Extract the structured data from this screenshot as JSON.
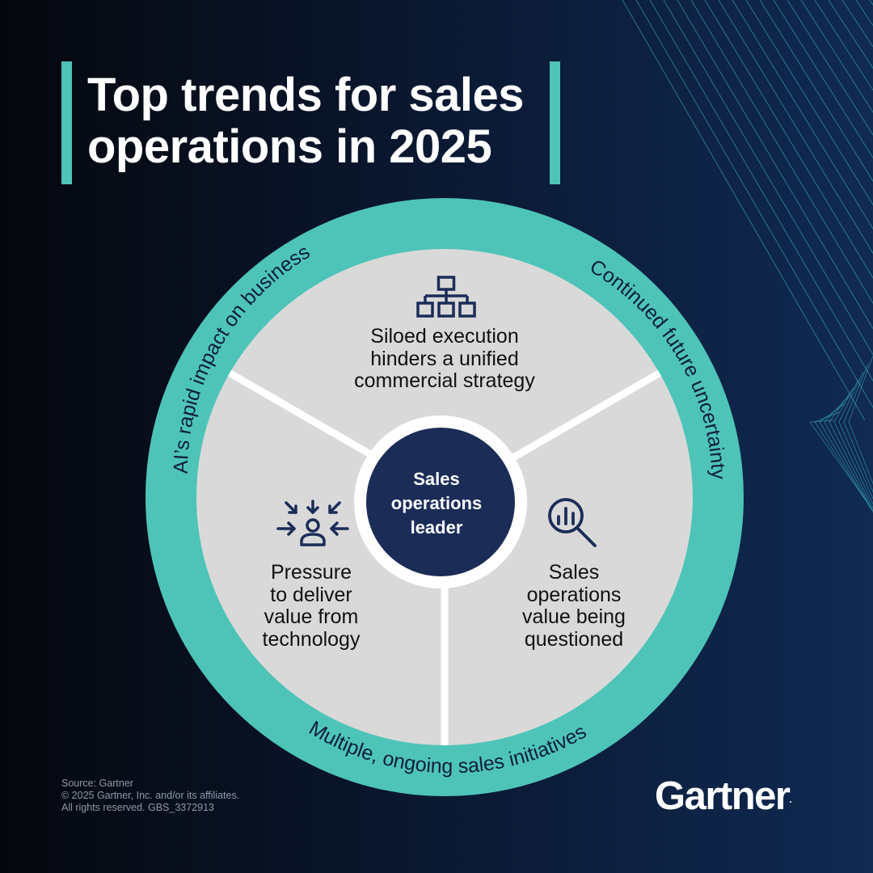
{
  "title": {
    "line1": "Top trends for sales",
    "line2": "operations in 2025"
  },
  "ring_labels": {
    "left": "AI’s rapid impact on business",
    "right": "Continued future uncertainty",
    "bottom": "Multiple, ongoing sales initiatives"
  },
  "segments": {
    "top": {
      "icon": "org-chart-icon",
      "lines": [
        "Siloed execution",
        "hinders a unified",
        "commercial strategy"
      ]
    },
    "left": {
      "icon": "pressure-person-icon",
      "lines": [
        "Pressure",
        "to deliver",
        "value from",
        "technology"
      ]
    },
    "right": {
      "icon": "magnifier-chart-icon",
      "lines": [
        "Sales",
        "operations",
        "value being",
        "questioned"
      ]
    }
  },
  "center": {
    "lines": [
      "Sales",
      "operations",
      "leader"
    ]
  },
  "footer": {
    "source": "Source: Gartner",
    "copyright": "© 2025 Gartner, Inc. and/or its affiliates.",
    "rights": "All rights reserved. GBS_3372913"
  },
  "logo": {
    "text": "Gartner",
    "mark": "."
  },
  "colors": {
    "teal": "#4ec4b8",
    "navy": "#1b2c57",
    "segment_gray": "#d9d9d9",
    "background": "#0b1a35"
  }
}
